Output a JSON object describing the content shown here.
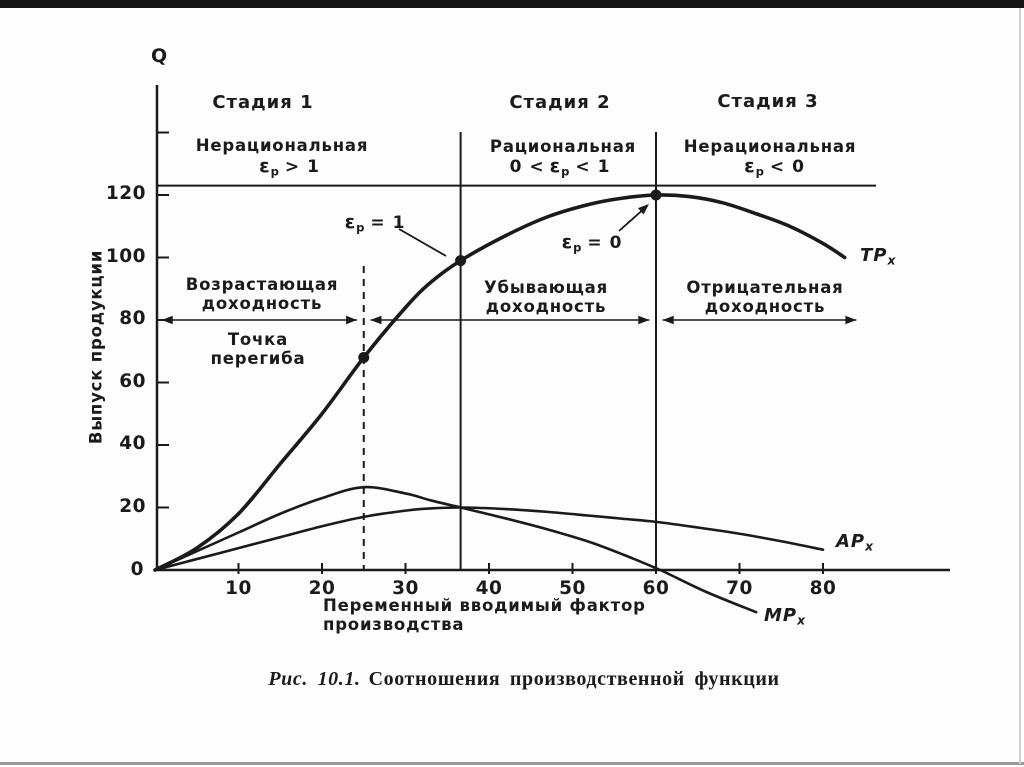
{
  "caption": {
    "prefix": "Рис. 10.1.",
    "text": "Соотношения производственной функции"
  },
  "axis": {
    "q_label": "Q",
    "y_title": "Выпуск продукции",
    "x_title_line1": "Переменный вводимый фактор",
    "x_title_line2": "производства",
    "origin": "0"
  },
  "stages": [
    {
      "title": "Стадия 1",
      "rationality": "Нерациональная",
      "condition_prefix": "",
      "epsilon": "ε",
      "epsilon_sub": "p",
      "condition": "> 1"
    },
    {
      "title": "Стадия 2",
      "rationality": "Рациональная",
      "condition_prefix": "0 <",
      "epsilon": "ε",
      "epsilon_sub": "p",
      "condition": "< 1"
    },
    {
      "title": "Стадия 3",
      "rationality": "Нерациональная",
      "condition_prefix": "",
      "epsilon": "ε",
      "epsilon_sub": "p",
      "condition": "< 0"
    }
  ],
  "annotations": {
    "eps1": {
      "epsilon": "ε",
      "sub": "p",
      "rest": "= 1"
    },
    "eps0": {
      "epsilon": "ε",
      "sub": "p",
      "rest": "= 0"
    },
    "increasing": {
      "line1": "Возрастающая",
      "line2": "доходность"
    },
    "decreasing": {
      "line1": "Убывающая",
      "line2": "доходность"
    },
    "negative": {
      "line1": "Отрицательная",
      "line2": "доходность"
    },
    "inflection": {
      "line1": "Точка",
      "line2": "перегиба"
    }
  },
  "curve_labels": {
    "tp": {
      "name": "TP",
      "sub": "x"
    },
    "ap": {
      "name": "AP",
      "sub": "x"
    },
    "mp": {
      "name": "MP",
      "sub": "x"
    }
  },
  "chart_data": {
    "type": "line",
    "title": "Рис. 10.1. Соотношения производственной функции",
    "xlabel": "Переменный вводимый фактор производства",
    "ylabel": "Выпуск продукции",
    "xlim": [
      0,
      95
    ],
    "ylim": [
      -15,
      150
    ],
    "grid": false,
    "x_ticks": [
      10,
      20,
      30,
      40,
      50,
      60,
      70,
      80
    ],
    "y_ticks": [
      20,
      40,
      60,
      80,
      100,
      120,
      140
    ],
    "y_tick_labels": [
      "20",
      "40",
      "60",
      "80",
      "100",
      "120",
      ""
    ],
    "series": [
      {
        "name": "TPx",
        "points": [
          [
            0,
            0
          ],
          [
            5,
            7
          ],
          [
            10,
            18
          ],
          [
            15,
            34
          ],
          [
            20,
            50
          ],
          [
            25,
            68
          ],
          [
            30,
            84
          ],
          [
            33,
            92
          ],
          [
            36.6,
            99
          ],
          [
            42,
            107
          ],
          [
            47,
            113
          ],
          [
            52,
            117
          ],
          [
            56,
            119
          ],
          [
            60,
            120
          ],
          [
            64,
            119.5
          ],
          [
            68,
            117.5
          ],
          [
            72,
            114
          ],
          [
            76,
            110
          ],
          [
            80,
            104.5
          ],
          [
            82.6,
            100
          ]
        ]
      },
      {
        "name": "APx",
        "points": [
          [
            0,
            0
          ],
          [
            5,
            3.5
          ],
          [
            10,
            7
          ],
          [
            15,
            10.5
          ],
          [
            20,
            14
          ],
          [
            25,
            17
          ],
          [
            30,
            19
          ],
          [
            33,
            19.7
          ],
          [
            36.6,
            20
          ],
          [
            42,
            19.5
          ],
          [
            47,
            18.6
          ],
          [
            52,
            17.4
          ],
          [
            56,
            16.4
          ],
          [
            60,
            15.4
          ],
          [
            65,
            13.6
          ],
          [
            70,
            11.6
          ],
          [
            75,
            9.2
          ],
          [
            80,
            6.5
          ]
        ]
      },
      {
        "name": "MPx",
        "points": [
          [
            0,
            0
          ],
          [
            5,
            6
          ],
          [
            10,
            12
          ],
          [
            15,
            18
          ],
          [
            20,
            23
          ],
          [
            25,
            26.5
          ],
          [
            30,
            24.5
          ],
          [
            33,
            22.3
          ],
          [
            36.6,
            20
          ],
          [
            42,
            16.5
          ],
          [
            47,
            13
          ],
          [
            52,
            9
          ],
          [
            56,
            5
          ],
          [
            60.5,
            0
          ],
          [
            66,
            -7
          ],
          [
            72,
            -13.5
          ]
        ]
      }
    ],
    "key_points": [
      {
        "x": 25,
        "y": 68,
        "label": "Точка перегиба"
      },
      {
        "x": 36.6,
        "y": 99,
        "label": "εp = 1"
      },
      {
        "x": 60,
        "y": 120,
        "label": "εp = 0"
      }
    ],
    "stage_boundaries": {
      "dashed_x": 25,
      "solid_x": [
        36.6,
        60
      ]
    },
    "reference_top_line_y": 123,
    "returns_arrow_y": 80,
    "arrow_segments_x": [
      [
        0.8,
        24.2
      ],
      [
        25.8,
        59.2
      ],
      [
        60.8,
        84
      ]
    ]
  }
}
